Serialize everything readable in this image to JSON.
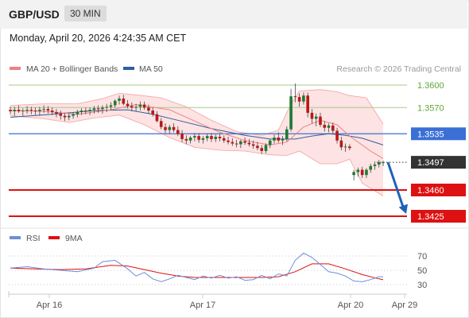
{
  "header": {
    "pair": "GBP/USD",
    "timeframe": "30 MIN",
    "datetime": "Monday, April 20, 2026 4:24:35 AM CET"
  },
  "legend": {
    "bollinger": "MA 20 + Bollinger Bands",
    "ma50": "MA 50",
    "credit": "Research © 2026 Trading Central",
    "rsi": "RSI",
    "ma9": "9MA"
  },
  "colors": {
    "up_candle": "#1e7a32",
    "down_candle": "#b81818",
    "bollinger": "#f08080",
    "bollinger_fill": "#fde0e0",
    "ma50": "#2f5f9e",
    "level_green": "#a8c98a",
    "level_blue": "#3a6fd6",
    "level_red": "#dd1111",
    "current_price": "#333333",
    "rsi_line": "#6c8fd9",
    "rsi_ma": "#dd1111",
    "arrow": "#1f62b8"
  },
  "chart_data": [
    {
      "type": "candlestick",
      "title": "",
      "x": {
        "ticks": [
          "Apr 16",
          "Apr 17",
          "Apr 20",
          "Apr 29"
        ]
      },
      "y": {
        "ticks": [
          1.3425,
          1.346,
          1.3497,
          1.3535,
          1.357,
          1.36
        ],
        "range": [
          1.341,
          1.3612
        ]
      },
      "levels": [
        {
          "label": "1.3600",
          "value": 1.36,
          "kind": "resistance-green"
        },
        {
          "label": "1.3570",
          "value": 1.357,
          "kind": "resistance-green"
        },
        {
          "label": "1.3535",
          "value": 1.3535,
          "kind": "pivot-blue"
        },
        {
          "label": "1.3497",
          "value": 1.3497,
          "kind": "current-price"
        },
        {
          "label": "1.3460",
          "value": 1.346,
          "kind": "support-red"
        },
        {
          "label": "1.3425",
          "value": 1.3425,
          "kind": "support-red"
        }
      ],
      "forecast": {
        "from": 1.3497,
        "to": 1.3425,
        "direction": "down"
      },
      "series": [
        {
          "name": "MA 20 + Bollinger Bands"
        },
        {
          "name": "MA 50"
        }
      ],
      "candles": [
        [
          1.3567,
          1.3571,
          1.3561,
          1.3565
        ],
        [
          1.3565,
          1.3571,
          1.3559,
          1.3567
        ],
        [
          1.3567,
          1.3573,
          1.3563,
          1.3565
        ],
        [
          1.3565,
          1.3569,
          1.3559,
          1.3566
        ],
        [
          1.3566,
          1.3572,
          1.3562,
          1.3567
        ],
        [
          1.3567,
          1.3571,
          1.3561,
          1.3566
        ],
        [
          1.3566,
          1.357,
          1.356,
          1.3565
        ],
        [
          1.3565,
          1.3571,
          1.3559,
          1.3567
        ],
        [
          1.3567,
          1.3573,
          1.3563,
          1.3568
        ],
        [
          1.3568,
          1.3572,
          1.3562,
          1.3566
        ],
        [
          1.3566,
          1.357,
          1.356,
          1.3564
        ],
        [
          1.3564,
          1.3568,
          1.3557,
          1.3562
        ],
        [
          1.3562,
          1.3566,
          1.3554,
          1.3559
        ],
        [
          1.3559,
          1.3563,
          1.3552,
          1.3557
        ],
        [
          1.3557,
          1.3562,
          1.3553,
          1.3559
        ],
        [
          1.3559,
          1.3564,
          1.3555,
          1.3561
        ],
        [
          1.3561,
          1.3567,
          1.3557,
          1.3564
        ],
        [
          1.3564,
          1.3569,
          1.356,
          1.3566
        ],
        [
          1.3566,
          1.357,
          1.3561,
          1.3565
        ],
        [
          1.3565,
          1.357,
          1.356,
          1.3567
        ],
        [
          1.3567,
          1.3572,
          1.3562,
          1.3569
        ],
        [
          1.3569,
          1.3573,
          1.3563,
          1.3568
        ],
        [
          1.3568,
          1.3573,
          1.3562,
          1.357
        ],
        [
          1.357,
          1.3575,
          1.3564,
          1.3571
        ],
        [
          1.3571,
          1.3577,
          1.3566,
          1.3573
        ],
        [
          1.3573,
          1.3581,
          1.357,
          1.3579
        ],
        [
          1.3579,
          1.3586,
          1.3574,
          1.3582
        ],
        [
          1.3582,
          1.3587,
          1.3573,
          1.3575
        ],
        [
          1.3575,
          1.358,
          1.3569,
          1.3572
        ],
        [
          1.3572,
          1.3577,
          1.3565,
          1.357
        ],
        [
          1.357,
          1.3575,
          1.3565,
          1.3571
        ],
        [
          1.3571,
          1.3578,
          1.3566,
          1.3574
        ],
        [
          1.3574,
          1.3578,
          1.3567,
          1.357
        ],
        [
          1.357,
          1.3574,
          1.3562,
          1.3566
        ],
        [
          1.3566,
          1.357,
          1.3558,
          1.3561
        ],
        [
          1.3561,
          1.3565,
          1.355,
          1.3552
        ],
        [
          1.3552,
          1.3556,
          1.3541,
          1.3544
        ],
        [
          1.3544,
          1.3549,
          1.3536,
          1.354
        ],
        [
          1.354,
          1.3547,
          1.3535,
          1.3544
        ],
        [
          1.3544,
          1.3549,
          1.3537,
          1.354
        ],
        [
          1.354,
          1.3545,
          1.3532,
          1.3535
        ],
        [
          1.3535,
          1.354,
          1.3524,
          1.3528
        ],
        [
          1.3528,
          1.3533,
          1.3521,
          1.3526
        ],
        [
          1.3526,
          1.3532,
          1.3522,
          1.353
        ],
        [
          1.353,
          1.3536,
          1.3525,
          1.3532
        ],
        [
          1.3532,
          1.3536,
          1.3523,
          1.3527
        ],
        [
          1.3527,
          1.3532,
          1.3522,
          1.3529
        ],
        [
          1.3529,
          1.3535,
          1.3525,
          1.3532
        ],
        [
          1.3532,
          1.3536,
          1.3524,
          1.3528
        ],
        [
          1.3528,
          1.3534,
          1.3524,
          1.3531
        ],
        [
          1.3531,
          1.3535,
          1.3525,
          1.3529
        ],
        [
          1.3529,
          1.3533,
          1.3523,
          1.3526
        ],
        [
          1.3526,
          1.3531,
          1.3521,
          1.3524
        ],
        [
          1.3524,
          1.3529,
          1.3519,
          1.3522
        ],
        [
          1.3522,
          1.3527,
          1.3517,
          1.3521
        ],
        [
          1.3521,
          1.3527,
          1.3516,
          1.3525
        ],
        [
          1.3525,
          1.353,
          1.352,
          1.3523
        ],
        [
          1.3523,
          1.3528,
          1.3518,
          1.3521
        ],
        [
          1.3521,
          1.3526,
          1.3515,
          1.3519
        ],
        [
          1.3519,
          1.3524,
          1.3513,
          1.3516
        ],
        [
          1.3516,
          1.352,
          1.3508,
          1.3512
        ],
        [
          1.3512,
          1.3522,
          1.3509,
          1.352
        ],
        [
          1.352,
          1.3528,
          1.3516,
          1.3526
        ],
        [
          1.3526,
          1.3534,
          1.3522,
          1.353
        ],
        [
          1.353,
          1.3537,
          1.3523,
          1.3526
        ],
        [
          1.3526,
          1.3532,
          1.352,
          1.3528
        ],
        [
          1.3528,
          1.3545,
          1.3525,
          1.3541
        ],
        [
          1.3541,
          1.3595,
          1.3538,
          1.3585
        ],
        [
          1.3585,
          1.3602,
          1.3577,
          1.3584
        ],
        [
          1.3584,
          1.3589,
          1.3571,
          1.3578
        ],
        [
          1.3578,
          1.359,
          1.3574,
          1.3586
        ],
        [
          1.3586,
          1.359,
          1.3557,
          1.3563
        ],
        [
          1.3563,
          1.3568,
          1.3549,
          1.3555
        ],
        [
          1.3555,
          1.3562,
          1.3545,
          1.3558
        ],
        [
          1.3558,
          1.3563,
          1.3544,
          1.3547
        ],
        [
          1.3547,
          1.3552,
          1.3538,
          1.3543
        ],
        [
          1.3543,
          1.3549,
          1.3537,
          1.3546
        ],
        [
          1.3546,
          1.355,
          1.3535,
          1.3539
        ],
        [
          1.3539,
          1.3543,
          1.3522,
          1.3526
        ],
        [
          1.3526,
          1.3531,
          1.3513,
          1.3517
        ],
        [
          1.3517,
          1.3522,
          1.3511,
          1.3518
        ],
        [
          1.3518,
          1.3521,
          1.3513,
          1.3516
        ],
        [
          1.348,
          1.3487,
          1.3473,
          1.3484
        ],
        [
          1.3484,
          1.349,
          1.3478,
          1.3487
        ],
        [
          1.3487,
          1.3491,
          1.3476,
          1.348
        ],
        [
          1.348,
          1.3489,
          1.3476,
          1.3487
        ],
        [
          1.3487,
          1.3495,
          1.3483,
          1.3492
        ],
        [
          1.3492,
          1.3498,
          1.3487,
          1.3494
        ],
        [
          1.3494,
          1.35,
          1.349,
          1.3497
        ],
        [
          1.3497,
          1.3499,
          1.3492,
          1.3497
        ]
      ],
      "ma20": [
        [
          0,
          1.3566
        ],
        [
          8,
          1.3565
        ],
        [
          16,
          1.3561
        ],
        [
          24,
          1.3567
        ],
        [
          30,
          1.3574
        ],
        [
          38,
          1.3567
        ],
        [
          44,
          1.3552
        ],
        [
          50,
          1.3537
        ],
        [
          56,
          1.3526
        ],
        [
          62,
          1.352
        ],
        [
          66,
          1.3524
        ],
        [
          70,
          1.3544
        ],
        [
          74,
          1.3553
        ],
        [
          78,
          1.3547
        ],
        [
          81,
          1.3532
        ],
        [
          86,
          1.3512
        ],
        [
          89,
          1.3502
        ]
      ],
      "bb_upper": [
        [
          0,
          1.3573
        ],
        [
          8,
          1.3575
        ],
        [
          16,
          1.3575
        ],
        [
          22,
          1.3582
        ],
        [
          26,
          1.3589
        ],
        [
          30,
          1.3587
        ],
        [
          36,
          1.3583
        ],
        [
          42,
          1.3571
        ],
        [
          48,
          1.3553
        ],
        [
          54,
          1.3538
        ],
        [
          60,
          1.3533
        ],
        [
          64,
          1.354
        ],
        [
          67,
          1.3575
        ],
        [
          69,
          1.3592
        ],
        [
          74,
          1.3594
        ],
        [
          78,
          1.3591
        ],
        [
          81,
          1.3586
        ],
        [
          85,
          1.3583
        ],
        [
          89,
          1.3548
        ]
      ],
      "bb_lower": [
        [
          0,
          1.3559
        ],
        [
          8,
          1.3555
        ],
        [
          14,
          1.355
        ],
        [
          20,
          1.3556
        ],
        [
          26,
          1.356
        ],
        [
          32,
          1.3547
        ],
        [
          38,
          1.353
        ],
        [
          44,
          1.3517
        ],
        [
          50,
          1.3513
        ],
        [
          56,
          1.3512
        ],
        [
          62,
          1.3507
        ],
        [
          66,
          1.3506
        ],
        [
          69,
          1.3512
        ],
        [
          74,
          1.3495
        ],
        [
          78,
          1.3495
        ],
        [
          81,
          1.3501
        ],
        [
          84,
          1.3469
        ],
        [
          89,
          1.3452
        ]
      ],
      "ma50": [
        [
          0,
          1.3557
        ],
        [
          10,
          1.3561
        ],
        [
          20,
          1.3566
        ],
        [
          28,
          1.3567
        ],
        [
          34,
          1.3561
        ],
        [
          40,
          1.3553
        ],
        [
          48,
          1.3542
        ],
        [
          56,
          1.3533
        ],
        [
          62,
          1.3528
        ],
        [
          68,
          1.3528
        ],
        [
          72,
          1.3532
        ],
        [
          76,
          1.3535
        ],
        [
          80,
          1.3533
        ],
        [
          84,
          1.3529
        ],
        [
          89,
          1.352
        ]
      ]
    },
    {
      "type": "line",
      "title": "",
      "y": {
        "ticks": [
          30,
          50,
          70
        ],
        "range": [
          20,
          80
        ]
      },
      "series": [
        {
          "name": "RSI",
          "points": [
            [
              0,
              53
            ],
            [
              4,
              55
            ],
            [
              8,
              52
            ],
            [
              12,
              50
            ],
            [
              16,
              48
            ],
            [
              20,
              53
            ],
            [
              22,
              62
            ],
            [
              25,
              64
            ],
            [
              28,
              52
            ],
            [
              30,
              42
            ],
            [
              32,
              47
            ],
            [
              34,
              38
            ],
            [
              36,
              34
            ],
            [
              38,
              38
            ],
            [
              40,
              43
            ],
            [
              42,
              40
            ],
            [
              44,
              37
            ],
            [
              46,
              42
            ],
            [
              48,
              39
            ],
            [
              50,
              43
            ],
            [
              52,
              39
            ],
            [
              54,
              41
            ],
            [
              56,
              36
            ],
            [
              58,
              37
            ],
            [
              60,
              43
            ],
            [
              62,
              38
            ],
            [
              64,
              45
            ],
            [
              66,
              42
            ],
            [
              68,
              64
            ],
            [
              70,
              74
            ],
            [
              72,
              68
            ],
            [
              74,
              58
            ],
            [
              76,
              48
            ],
            [
              78,
              46
            ],
            [
              80,
              42
            ],
            [
              82,
              35
            ],
            [
              84,
              34
            ],
            [
              86,
              37
            ],
            [
              88,
              41
            ],
            [
              89,
              41
            ]
          ]
        },
        {
          "name": "9MA",
          "points": [
            [
              0,
              53
            ],
            [
              6,
              52
            ],
            [
              12,
              51
            ],
            [
              18,
              52
            ],
            [
              24,
              57
            ],
            [
              28,
              56
            ],
            [
              32,
              51
            ],
            [
              36,
              46
            ],
            [
              40,
              42
            ],
            [
              44,
              40
            ],
            [
              48,
              40
            ],
            [
              52,
              40
            ],
            [
              56,
              40
            ],
            [
              60,
              40
            ],
            [
              64,
              41
            ],
            [
              68,
              48
            ],
            [
              72,
              59
            ],
            [
              76,
              59
            ],
            [
              80,
              52
            ],
            [
              84,
              44
            ],
            [
              88,
              38
            ],
            [
              89,
              37
            ]
          ]
        }
      ]
    }
  ]
}
